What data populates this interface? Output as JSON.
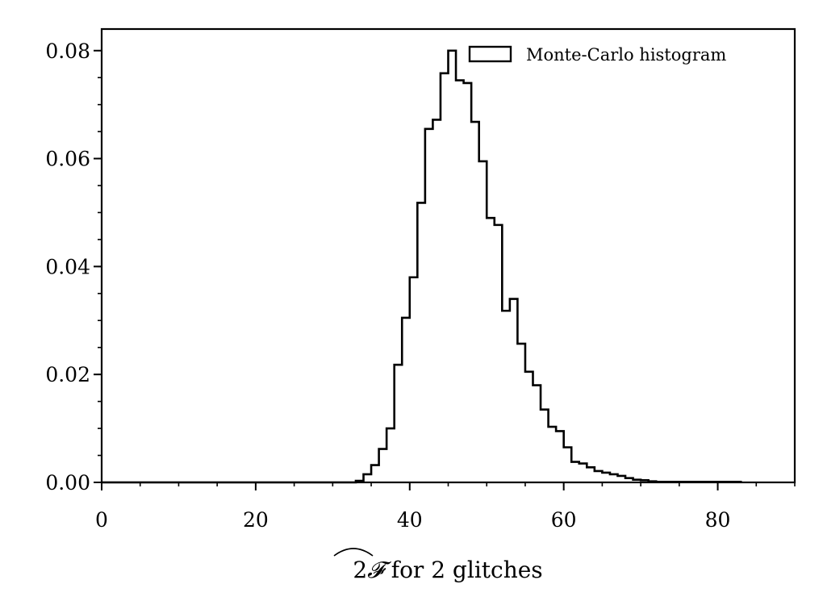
{
  "chart_data": {
    "type": "histogram",
    "xlabel_suffix": " for 2 glitches",
    "xlabel_symbol": "2F (with hat)",
    "ylabel": "",
    "xlim": [
      0,
      90
    ],
    "ylim": [
      0,
      0.084
    ],
    "x_ticks": [
      0,
      20,
      40,
      60,
      80
    ],
    "x_tick_labels": [
      "0",
      "20",
      "40",
      "60",
      "80"
    ],
    "y_ticks": [
      0.0,
      0.02,
      0.04,
      0.06,
      0.08
    ],
    "y_tick_labels": [
      "0.00",
      "0.02",
      "0.04",
      "0.06",
      "0.08"
    ],
    "x_minor_step": 5,
    "y_minor_step": 0.005,
    "grid": false,
    "legend": {
      "position": "top-right",
      "entries": [
        "Monte-Carlo histogram"
      ]
    },
    "series": [
      {
        "name": "Monte-Carlo histogram",
        "style": "step-outline",
        "color": "#000000",
        "bin_start": 33.0,
        "bin_width": 1.0,
        "values": [
          0.0003,
          0.0015,
          0.0032,
          0.0062,
          0.01,
          0.0218,
          0.0305,
          0.038,
          0.0518,
          0.0655,
          0.0672,
          0.0758,
          0.08,
          0.0745,
          0.074,
          0.0668,
          0.0595,
          0.049,
          0.0477,
          0.0318,
          0.034,
          0.0257,
          0.0205,
          0.018,
          0.0135,
          0.0103,
          0.0095,
          0.0065,
          0.0038,
          0.0035,
          0.0028,
          0.0021,
          0.0018,
          0.0015,
          0.0012,
          0.0008,
          0.0005,
          0.0004,
          0.0002,
          0.0001,
          0.0001,
          0.0001,
          0.0001,
          0.0001,
          0.0001,
          0.0001,
          0.0001,
          0.0001,
          0.0001,
          0.0001
        ]
      }
    ]
  }
}
